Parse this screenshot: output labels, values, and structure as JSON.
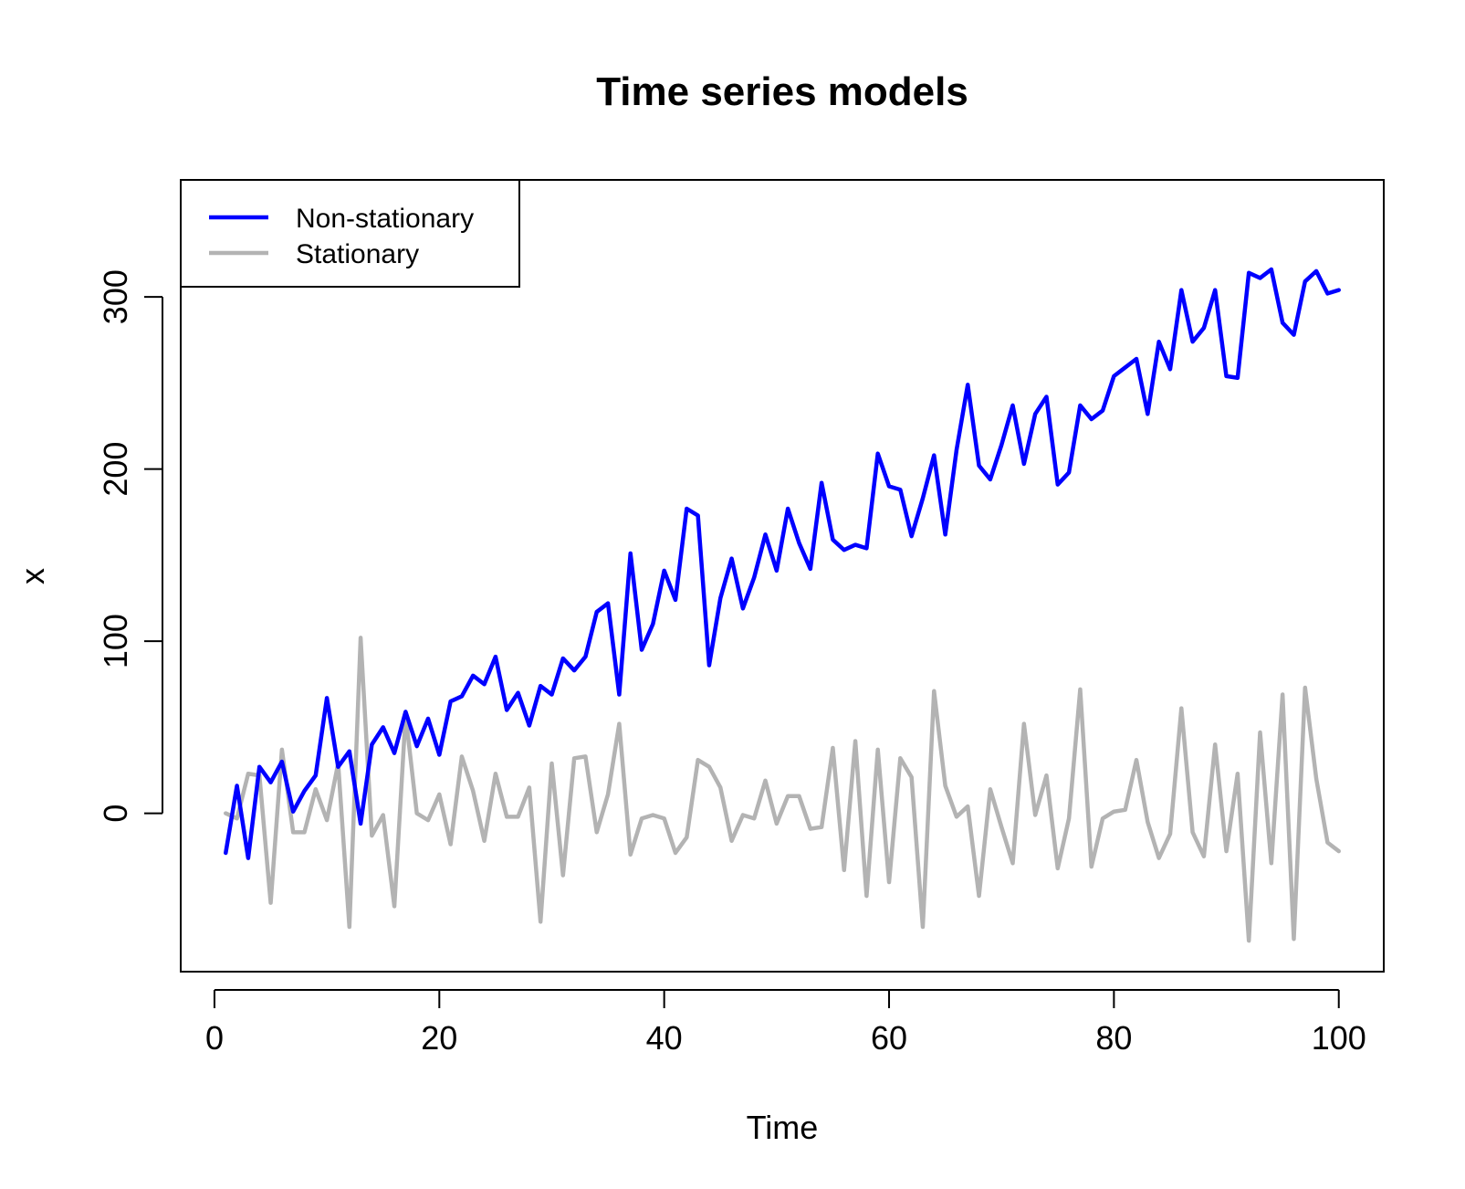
{
  "chart_data": {
    "type": "line",
    "title": "Time series models",
    "xlabel": "Time",
    "ylabel": "x",
    "xlim": [
      -3,
      104
    ],
    "ylim": [
      -92,
      368
    ],
    "xticks": [
      0,
      20,
      40,
      60,
      80,
      100
    ],
    "yticks": [
      0,
      100,
      200,
      300
    ],
    "grid": false,
    "legend_position": "top-left",
    "x": [
      1,
      2,
      3,
      4,
      5,
      6,
      7,
      8,
      9,
      10,
      11,
      12,
      13,
      14,
      15,
      16,
      17,
      18,
      19,
      20,
      21,
      22,
      23,
      24,
      25,
      26,
      27,
      28,
      29,
      30,
      31,
      32,
      33,
      34,
      35,
      36,
      37,
      38,
      39,
      40,
      41,
      42,
      43,
      44,
      45,
      46,
      47,
      48,
      49,
      50,
      51,
      52,
      53,
      54,
      55,
      56,
      57,
      58,
      59,
      60,
      61,
      62,
      63,
      64,
      65,
      66,
      67,
      68,
      69,
      70,
      71,
      72,
      73,
      74,
      75,
      76,
      77,
      78,
      79,
      80,
      81,
      82,
      83,
      84,
      85,
      86,
      87,
      88,
      89,
      90,
      91,
      92,
      93,
      94,
      95,
      96,
      97,
      98,
      99,
      100
    ],
    "series": [
      {
        "name": "Non-stationary",
        "color": "#0000ff",
        "values": [
          -23,
          16,
          -26,
          27,
          18,
          30,
          1,
          13,
          22,
          67,
          27,
          36,
          -6,
          40,
          50,
          35,
          59,
          39,
          55,
          34,
          65,
          68,
          80,
          75,
          91,
          60,
          70,
          51,
          74,
          69,
          90,
          83,
          91,
          117,
          122,
          69,
          151,
          95,
          110,
          141,
          124,
          177,
          173,
          86,
          125,
          148,
          119,
          137,
          162,
          141,
          177,
          157,
          142,
          192,
          159,
          153,
          156,
          154,
          209,
          190,
          188,
          161,
          183,
          208,
          162,
          211,
          249,
          202,
          194,
          214,
          237,
          203,
          232,
          242,
          191,
          198,
          237,
          229,
          234,
          254,
          259,
          264,
          232,
          274,
          258,
          304,
          274,
          282,
          304,
          254,
          253,
          314,
          311,
          316,
          285,
          278,
          309,
          315,
          302,
          304
        ]
      },
      {
        "name": "Stationary",
        "color": "#b3b3b3",
        "values": [
          0,
          -3,
          23,
          22,
          -52,
          37,
          -11,
          -11,
          14,
          -4,
          29,
          -66,
          102,
          -13,
          -1,
          -54,
          57,
          0,
          -4,
          11,
          -18,
          33,
          13,
          -16,
          23,
          -2,
          -2,
          15,
          -63,
          29,
          -36,
          32,
          33,
          -11,
          11,
          52,
          -24,
          -3,
          -1,
          -3,
          -23,
          -14,
          31,
          27,
          15,
          -16,
          -1,
          -3,
          19,
          -6,
          10,
          10,
          -9,
          -8,
          38,
          -33,
          42,
          -48,
          37,
          -40,
          32,
          21,
          -66,
          71,
          16,
          -2,
          4,
          -48,
          14,
          -8,
          -29,
          52,
          -1,
          22,
          -32,
          -3,
          72,
          -31,
          -3,
          1,
          2,
          31,
          -5,
          -26,
          -12,
          61,
          -11,
          -25,
          40,
          -22,
          23,
          -74,
          47,
          -29,
          69,
          -73,
          73,
          20,
          -17,
          -22
        ]
      }
    ]
  }
}
